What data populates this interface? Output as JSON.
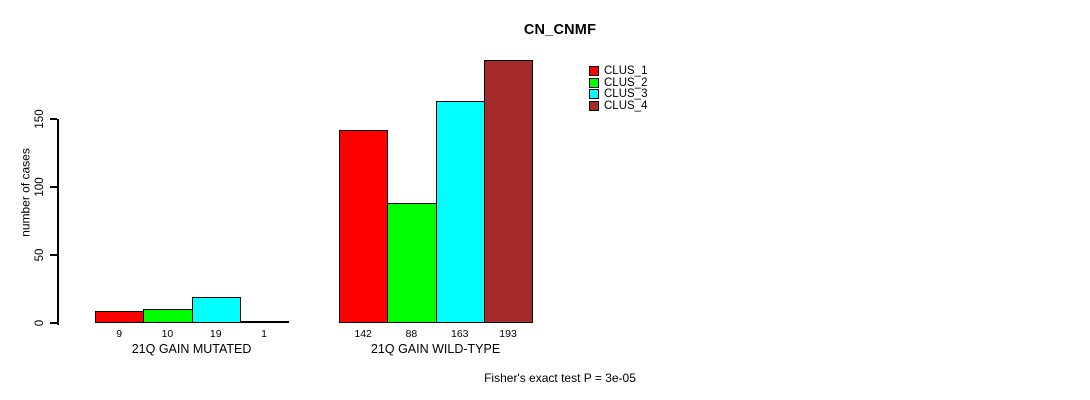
{
  "chart_data": {
    "type": "bar",
    "title": "CN_CNMF",
    "ylabel": "number of cases",
    "ylim": [
      0,
      200
    ],
    "yticks": [
      0,
      50,
      100,
      150
    ],
    "grid": false,
    "legend_position": "upper-right-of-plot",
    "categories": [
      "21Q GAIN MUTATED",
      "21Q GAIN WILD-TYPE"
    ],
    "series": [
      {
        "name": "CLUS_1",
        "color": "#ff0000",
        "values": [
          9,
          142
        ]
      },
      {
        "name": "CLUS_2",
        "color": "#00ff00",
        "values": [
          10,
          88
        ]
      },
      {
        "name": "CLUS_3",
        "color": "#00ffff",
        "values": [
          19,
          163
        ]
      },
      {
        "name": "CLUS_4",
        "color": "#a52a2a",
        "values": [
          1,
          193
        ]
      }
    ],
    "bar_value_labels": [
      [
        9,
        10,
        19,
        1
      ],
      [
        142,
        88,
        163,
        193
      ]
    ],
    "footnote": "Fisher's exact test P = 3e-05"
  }
}
